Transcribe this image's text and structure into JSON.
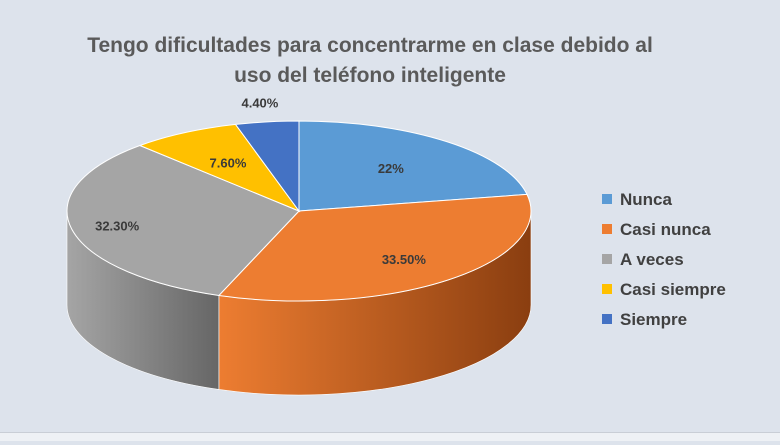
{
  "chart_data": {
    "type": "pie",
    "title": "Tengo dificultades para concentrarme en clase debido al uso del teléfono inteligente",
    "title_lines": [
      "Tengo dificultades para concentrarme en clase debido al",
      "uso del teléfono inteligente"
    ],
    "categories": [
      "Nunca",
      "Casi nunca",
      "A veces",
      "Casi siempre",
      "Siempre"
    ],
    "values": [
      22,
      33.5,
      32.3,
      7.6,
      4.4
    ],
    "data_labels": [
      "22%",
      "33.50%",
      "32.30%",
      "7.60%",
      "4.40%"
    ],
    "colors": [
      "#5b9bd5",
      "#ed7d31",
      "#a5a5a5",
      "#ffc000",
      "#4472c4"
    ],
    "side_colors": [
      "#2e5f8c",
      "#8a3e10",
      "#666666",
      "#9a7300",
      "#2a4680"
    ],
    "legend_position": "right",
    "style": "3d-pie"
  }
}
